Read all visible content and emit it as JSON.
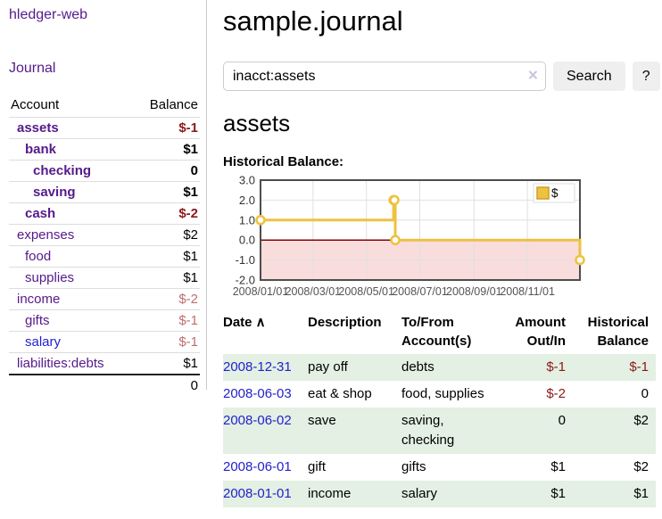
{
  "colors": {
    "link_purple": "#551a8b",
    "link_blue": "#2222cc",
    "negative_red": "#8b1a1a",
    "muted_red": "#bd6e6e",
    "row_green": "#e3f0e3",
    "chart_line": "#edc240",
    "chart_negative_fill": "#f9dcdc",
    "chart_zero_line": "#8b0000",
    "chart_border": "#4d4d4d",
    "grid_line": "#e0e0e0"
  },
  "app": {
    "title": "hledger-web"
  },
  "sidebar": {
    "journal_link": "Journal",
    "accounts": {
      "headers": {
        "account": "Account",
        "balance": "Balance"
      },
      "rows": [
        {
          "name": "assets",
          "indent": 1,
          "bold": true,
          "name_color": "purple",
          "balance": "$-1",
          "balance_tone": "negative",
          "balance_bold": true
        },
        {
          "name": "bank",
          "indent": 2,
          "bold": true,
          "name_color": "purple",
          "balance": "$1",
          "balance_tone": "normal",
          "balance_bold": true
        },
        {
          "name": "checking",
          "indent": 3,
          "bold": true,
          "name_color": "purple",
          "balance": "0",
          "balance_tone": "normal",
          "balance_bold": true
        },
        {
          "name": "saving",
          "indent": 3,
          "bold": true,
          "name_color": "purple",
          "balance": "$1",
          "balance_tone": "normal",
          "balance_bold": true
        },
        {
          "name": "cash",
          "indent": 2,
          "bold": true,
          "name_color": "purple",
          "balance": "$-2",
          "balance_tone": "negative",
          "balance_bold": true
        },
        {
          "name": "expenses",
          "indent": 1,
          "bold": false,
          "name_color": "purple",
          "balance": "$2",
          "balance_tone": "normal",
          "balance_bold": false
        },
        {
          "name": "food",
          "indent": 2,
          "bold": false,
          "name_color": "purple",
          "balance": "$1",
          "balance_tone": "normal",
          "balance_bold": false
        },
        {
          "name": "supplies",
          "indent": 2,
          "bold": false,
          "name_color": "purple",
          "balance": "$1",
          "balance_tone": "normal",
          "balance_bold": false
        },
        {
          "name": "income",
          "indent": 1,
          "bold": false,
          "name_color": "purple",
          "balance": "$-2",
          "balance_tone": "muted",
          "balance_bold": false
        },
        {
          "name": "gifts",
          "indent": 2,
          "bold": false,
          "name_color": "purple",
          "balance": "$-1",
          "balance_tone": "muted",
          "balance_bold": false
        },
        {
          "name": "salary",
          "indent": 2,
          "bold": false,
          "name_color": "blue",
          "balance": "$-1",
          "balance_tone": "muted",
          "balance_bold": false
        },
        {
          "name": "liabilities:debts",
          "indent": 1,
          "bold": false,
          "name_color": "purple",
          "balance": "$1",
          "balance_tone": "normal",
          "balance_bold": false
        }
      ],
      "total": "0"
    }
  },
  "main": {
    "title": "sample.journal",
    "search": {
      "value": "inacct:assets",
      "clear_icon": "×",
      "search_button": "Search",
      "help_button": "?"
    },
    "account_heading": "assets",
    "chart_label": "Historical Balance:"
  },
  "chart_data": {
    "type": "line",
    "step": true,
    "title": "Historical Balance",
    "series": [
      {
        "name": "$",
        "color": "#edc240",
        "points": [
          {
            "date": "2008/01/01",
            "value": 1
          },
          {
            "date": "2008/06/01",
            "value": 2
          },
          {
            "date": "2008/06/02",
            "value": 2
          },
          {
            "date": "2008/06/03",
            "value": 0
          },
          {
            "date": "2008/12/31",
            "value": -1
          }
        ]
      }
    ],
    "x_start": "2008/01/01",
    "x_end": "2008/12/31",
    "x_ticks": [
      "2008/01/01",
      "2008/03/01",
      "2008/05/01",
      "2008/07/01",
      "2008/09/01",
      "2008/11/01"
    ],
    "y_ticks": [
      3.0,
      2.0,
      1.0,
      0.0,
      -1.0,
      -2.0
    ],
    "ylim": [
      -2,
      3
    ],
    "grid": true,
    "legend": {
      "label": "$",
      "position": "top-right"
    }
  },
  "register": {
    "headers": [
      {
        "line1": "Date",
        "line2": "",
        "sort_icon": "∧",
        "align": "left"
      },
      {
        "line1": "Description",
        "line2": "",
        "align": "left"
      },
      {
        "line1": "To/From",
        "line2": "Account(s)",
        "align": "left"
      },
      {
        "line1": "Amount",
        "line2": "Out/In",
        "align": "right"
      },
      {
        "line1": "Historical",
        "line2": "Balance",
        "align": "right"
      }
    ],
    "rows": [
      {
        "date": "2008-12-31",
        "description": "pay off",
        "accounts": "debts",
        "amount": "$-1",
        "amount_tone": "negative",
        "balance": "$-1",
        "balance_tone": "negative"
      },
      {
        "date": "2008-06-03",
        "description": "eat & shop",
        "accounts": "food, supplies",
        "amount": "$-2",
        "amount_tone": "negative",
        "balance": "0",
        "balance_tone": "normal"
      },
      {
        "date": "2008-06-02",
        "description": "save",
        "accounts": "saving, checking",
        "amount": "0",
        "amount_tone": "normal",
        "balance": "$2",
        "balance_tone": "normal"
      },
      {
        "date": "2008-06-01",
        "description": "gift",
        "accounts": "gifts",
        "amount": "$1",
        "amount_tone": "normal",
        "balance": "$2",
        "balance_tone": "normal"
      },
      {
        "date": "2008-01-01",
        "description": "income",
        "accounts": "salary",
        "amount": "$1",
        "amount_tone": "normal",
        "balance": "$1",
        "balance_tone": "normal"
      }
    ]
  }
}
